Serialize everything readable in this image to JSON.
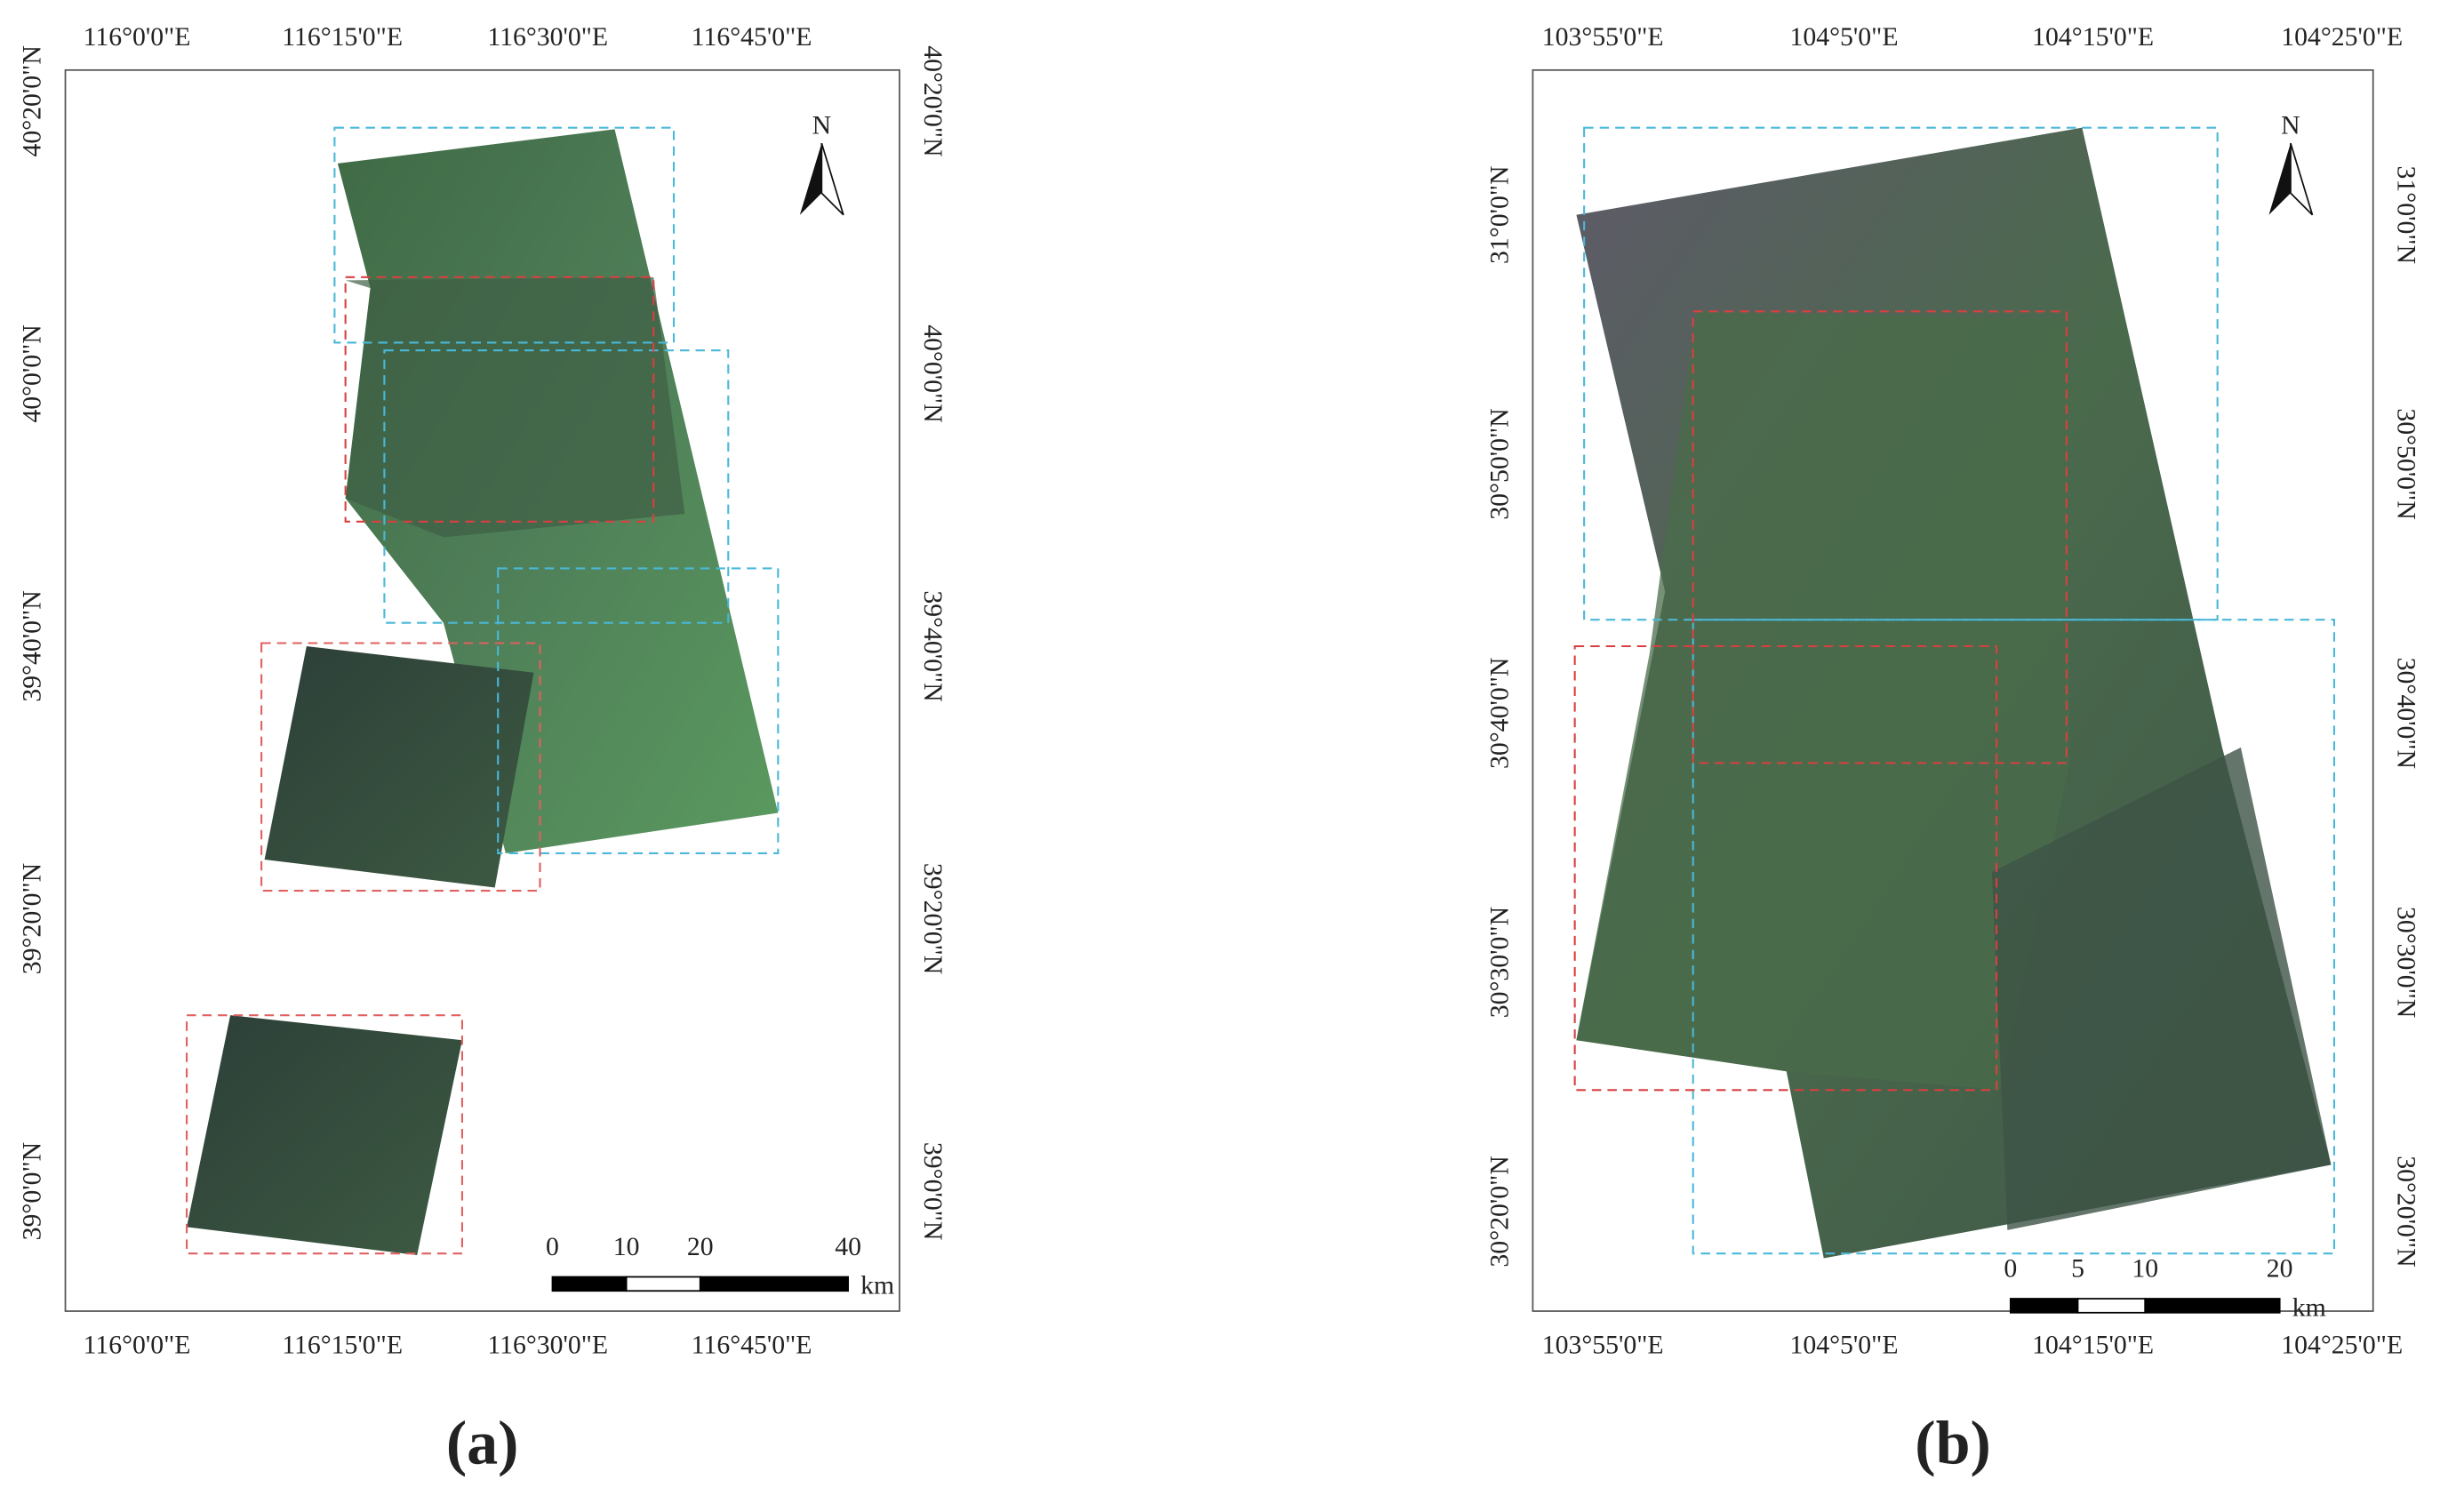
{
  "panels": [
    {
      "label": "(a)",
      "north": "N",
      "scale_unit": "km",
      "scale_ticks": [
        0,
        10,
        20,
        40
      ],
      "lon_labels": [
        "116°0'0\"E",
        "116°15'0\"E",
        "116°30'0\"E",
        "116°45'0\"E"
      ],
      "lat_labels": [
        "40°20'0\"N",
        "40°0'0\"N",
        "39°40'0\"N",
        "39°20'0\"N",
        "39°0'0\"N"
      ]
    },
    {
      "label": "(b)",
      "north": "N",
      "scale_unit": "km",
      "scale_ticks": [
        0,
        5,
        10,
        20
      ],
      "lon_labels": [
        "103°55'0\"E",
        "104°5'0\"E",
        "104°15'0\"E",
        "104°25'0\"E"
      ],
      "lat_labels": [
        "31°0'0\"N",
        "30°50'0\"N",
        "30°40'0\"N",
        "30°30'0\"N",
        "30°20'0\"N"
      ]
    }
  ]
}
